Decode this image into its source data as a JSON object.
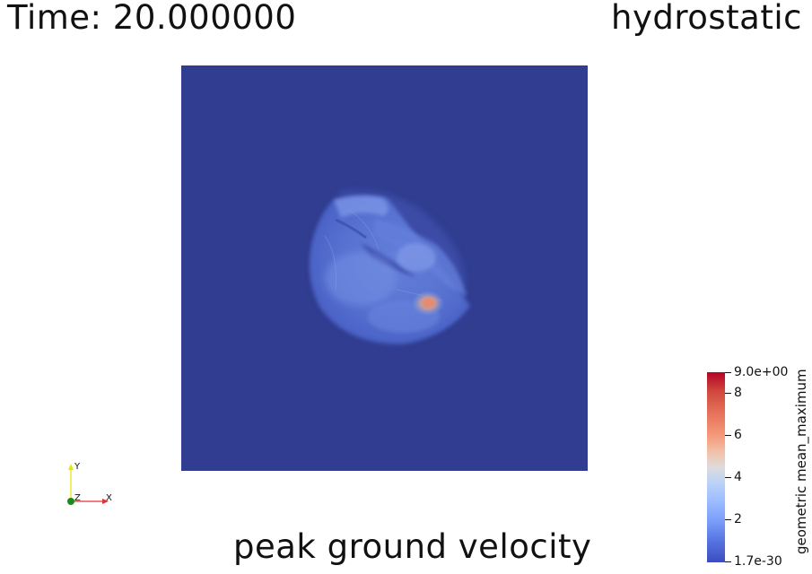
{
  "header": {
    "time": "Time: 20.000000",
    "case": "hydrostatic"
  },
  "footer": {
    "title": "peak ground velocity"
  },
  "colorbar": {
    "title": "geometric mean_maximum",
    "max_label": "9.0e+00",
    "min_label": "1.7e-30",
    "ticks": [
      "8",
      "6",
      "4",
      "2"
    ],
    "colormap": "Cool to Warm",
    "low_color": "#3b4cc0",
    "mid_color": "#dddcdc",
    "high_color": "#b40426"
  },
  "axes": {
    "y": "Y",
    "z": "Z",
    "x": "X"
  },
  "plot": {
    "background_color": "#303d90",
    "range": [
      1.7e-30,
      9.0
    ],
    "peak_value_approx": 6
  }
}
